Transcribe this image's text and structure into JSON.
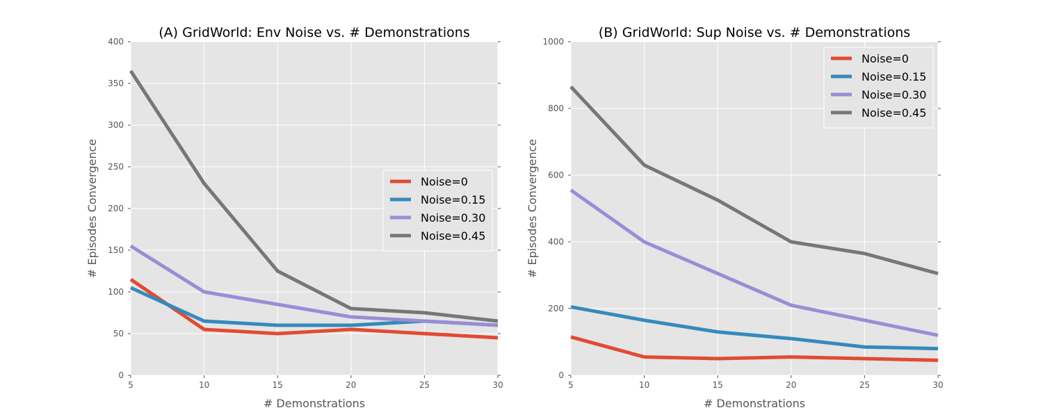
{
  "chart_data": [
    {
      "type": "line",
      "title": "(A) GridWorld: Env Noise vs. # Demonstrations",
      "xlabel": "# Demonstrations",
      "ylabel": "# Episodes Convergence",
      "x": [
        5,
        10,
        15,
        20,
        25,
        30
      ],
      "xlim": [
        5,
        30
      ],
      "ylim": [
        0,
        400
      ],
      "xticks": [
        5,
        10,
        15,
        20,
        25,
        30
      ],
      "yticks": [
        0,
        50,
        100,
        150,
        200,
        250,
        300,
        350,
        400
      ],
      "grid": true,
      "legend_position": "center-right",
      "series": [
        {
          "name": "Noise=0",
          "color": "#E24A33",
          "values": [
            115,
            55,
            50,
            55,
            50,
            45
          ]
        },
        {
          "name": "Noise=0.15",
          "color": "#348ABD",
          "values": [
            105,
            65,
            60,
            60,
            65,
            60
          ]
        },
        {
          "name": "Noise=0.30",
          "color": "#988ED5",
          "values": [
            155,
            100,
            85,
            70,
            65,
            60
          ]
        },
        {
          "name": "Noise=0.45",
          "color": "#777777",
          "values": [
            365,
            230,
            125,
            80,
            75,
            65
          ]
        }
      ]
    },
    {
      "type": "line",
      "title": "(B) GridWorld: Sup Noise vs. # Demonstrations",
      "xlabel": "# Demonstrations",
      "ylabel": "# Episodes Convergence",
      "x": [
        5,
        10,
        15,
        20,
        25,
        30
      ],
      "xlim": [
        5,
        30
      ],
      "ylim": [
        0,
        1000
      ],
      "xticks": [
        5,
        10,
        15,
        20,
        25,
        30
      ],
      "yticks": [
        0,
        200,
        400,
        600,
        800,
        1000
      ],
      "grid": true,
      "legend_position": "top-right",
      "series": [
        {
          "name": "Noise=0",
          "color": "#E24A33",
          "values": [
            115,
            55,
            50,
            55,
            50,
            45
          ]
        },
        {
          "name": "Noise=0.15",
          "color": "#348ABD",
          "values": [
            205,
            165,
            130,
            110,
            85,
            80
          ]
        },
        {
          "name": "Noise=0.30",
          "color": "#988ED5",
          "values": [
            555,
            400,
            305,
            210,
            165,
            120
          ]
        },
        {
          "name": "Noise=0.45",
          "color": "#777777",
          "values": [
            865,
            630,
            525,
            400,
            365,
            305
          ]
        }
      ]
    }
  ]
}
